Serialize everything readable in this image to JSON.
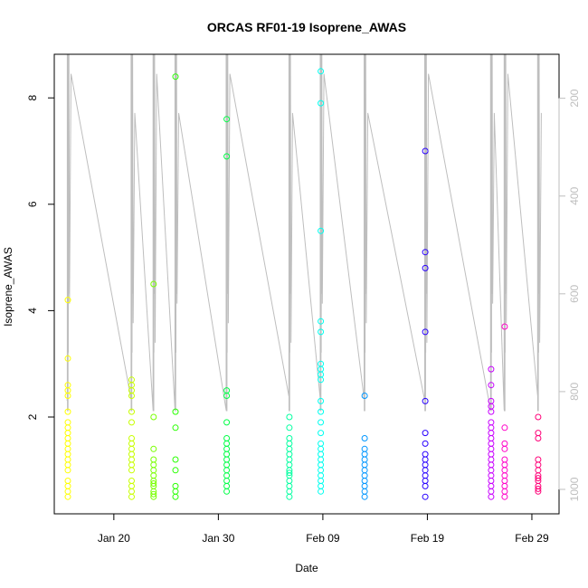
{
  "chart_data": {
    "type": "scatter",
    "title": "ORCAS RF01-19 Isoprene_AWAS",
    "xlabel": "Date",
    "ylabel": "Isoprene_AWAS",
    "x_ticks": [
      "Jan 20",
      "Jan 30",
      "Feb 09",
      "Feb 19",
      "Feb 29"
    ],
    "x_tick_days": [
      20,
      30,
      40,
      50,
      60
    ],
    "xlim_days": [
      14.3,
      62.6
    ],
    "y_ticks": [
      "2",
      "4",
      "6",
      "8"
    ],
    "y_tick_values": [
      2,
      4,
      6,
      8
    ],
    "ylim": [
      0.18,
      8.82
    ],
    "right_axis_ticks": [
      "200",
      "400",
      "600",
      "800",
      "1000"
    ],
    "right_axis_values": [
      200,
      400,
      600,
      800,
      1000
    ],
    "right_axis_lim": [
      1050,
      110
    ],
    "pressure_trace_color": "#bebebe",
    "flights": [
      {
        "day": 15.6,
        "color": "#ffff00",
        "values": [
          4.2,
          3.1,
          2.6,
          2.5,
          2.4,
          2.1,
          1.9,
          1.8,
          1.7,
          1.6,
          1.5,
          1.4,
          1.3,
          1.2,
          1.1,
          1.0,
          0.8,
          0.7,
          0.6,
          0.5
        ]
      },
      {
        "day": 21.7,
        "color": "#c8ff00",
        "values": [
          2.7,
          2.6,
          2.5,
          2.4,
          2.1,
          1.9,
          1.6,
          1.5,
          1.4,
          1.3,
          1.2,
          1.1,
          1.0,
          0.8,
          0.7,
          0.6,
          0.5
        ]
      },
      {
        "day": 23.8,
        "color": "#78ff00",
        "values": [
          4.5,
          2.0,
          1.4,
          1.2,
          1.1,
          1.0,
          0.9,
          0.8,
          0.75,
          0.7,
          0.6,
          0.55,
          0.5
        ]
      },
      {
        "day": 25.9,
        "color": "#28ff00",
        "values": [
          8.4,
          2.1,
          1.8,
          1.2,
          1.0,
          0.7,
          0.6,
          0.5
        ]
      },
      {
        "day": 30.8,
        "color": "#00ff46",
        "values": [
          7.6,
          6.9,
          2.5,
          2.4,
          1.9,
          1.6,
          1.5,
          1.4,
          1.3,
          1.2,
          1.1,
          1.0,
          0.9,
          0.8,
          0.7,
          0.6
        ]
      },
      {
        "day": 36.8,
        "color": "#00ffa0",
        "values": [
          2.0,
          1.8,
          1.6,
          1.5,
          1.4,
          1.3,
          1.2,
          1.1,
          1.0,
          0.95,
          0.9,
          0.8,
          0.7,
          0.6,
          0.5
        ]
      },
      {
        "day": 39.8,
        "color": "#00fff0",
        "values": [
          8.5,
          7.9,
          5.5,
          3.8,
          3.6,
          3.0,
          2.9,
          2.8,
          2.7,
          2.3,
          2.1,
          1.9,
          1.7,
          1.5,
          1.4,
          1.3,
          1.2,
          1.1,
          1.0,
          0.9,
          0.8,
          0.7,
          0.6
        ]
      },
      {
        "day": 44.0,
        "color": "#0096ff",
        "values": [
          2.4,
          1.6,
          1.4,
          1.3,
          1.2,
          1.1,
          1.0,
          0.9,
          0.8,
          0.7,
          0.6,
          0.5
        ]
      },
      {
        "day": 49.8,
        "color": "#2800ff",
        "values": [
          7.0,
          5.1,
          4.8,
          3.6,
          2.3,
          1.7,
          1.5,
          1.3,
          1.2,
          1.1,
          1.0,
          0.9,
          0.8,
          0.7,
          0.5
        ]
      },
      {
        "day": 56.1,
        "color": "#c800ff",
        "values": [
          2.9,
          2.6,
          2.3,
          2.2,
          2.1,
          1.9,
          1.8,
          1.7,
          1.6,
          1.5,
          1.4,
          1.3,
          1.2,
          1.1,
          1.0,
          0.9,
          0.8,
          0.7,
          0.6,
          0.5
        ]
      },
      {
        "day": 57.4,
        "color": "#ff00c8",
        "values": [
          3.7,
          1.8,
          1.5,
          1.4,
          1.2,
          1.1,
          1.0,
          0.9,
          0.8,
          0.7,
          0.6,
          0.5
        ]
      },
      {
        "day": 60.6,
        "color": "#ff0078",
        "values": [
          2.0,
          1.7,
          1.6,
          1.2,
          1.1,
          1.0,
          0.9,
          0.85,
          0.8,
          0.7,
          0.65,
          0.6
        ]
      }
    ]
  }
}
